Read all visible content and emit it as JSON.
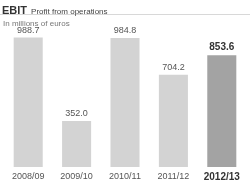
{
  "chart_data": {
    "type": "bar",
    "title": "EBIT",
    "subtitle": "Profit from operations",
    "ylabel": "In millions of euros",
    "categories": [
      "2008/09",
      "2009/10",
      "2010/11",
      "2011/12",
      "2012/13"
    ],
    "values": [
      988.7,
      352.0,
      984.8,
      704.2,
      853.6
    ],
    "value_labels": [
      "988.7",
      "352.0",
      "984.8",
      "704.2",
      "853.6"
    ],
    "colors": [
      "#d3d3d3",
      "#d3d3d3",
      "#d3d3d3",
      "#d3d3d3",
      "#a3a3a3"
    ],
    "ylim": [
      0,
      1100
    ],
    "grid": false,
    "data_labels": true,
    "tick_labels": "x"
  }
}
